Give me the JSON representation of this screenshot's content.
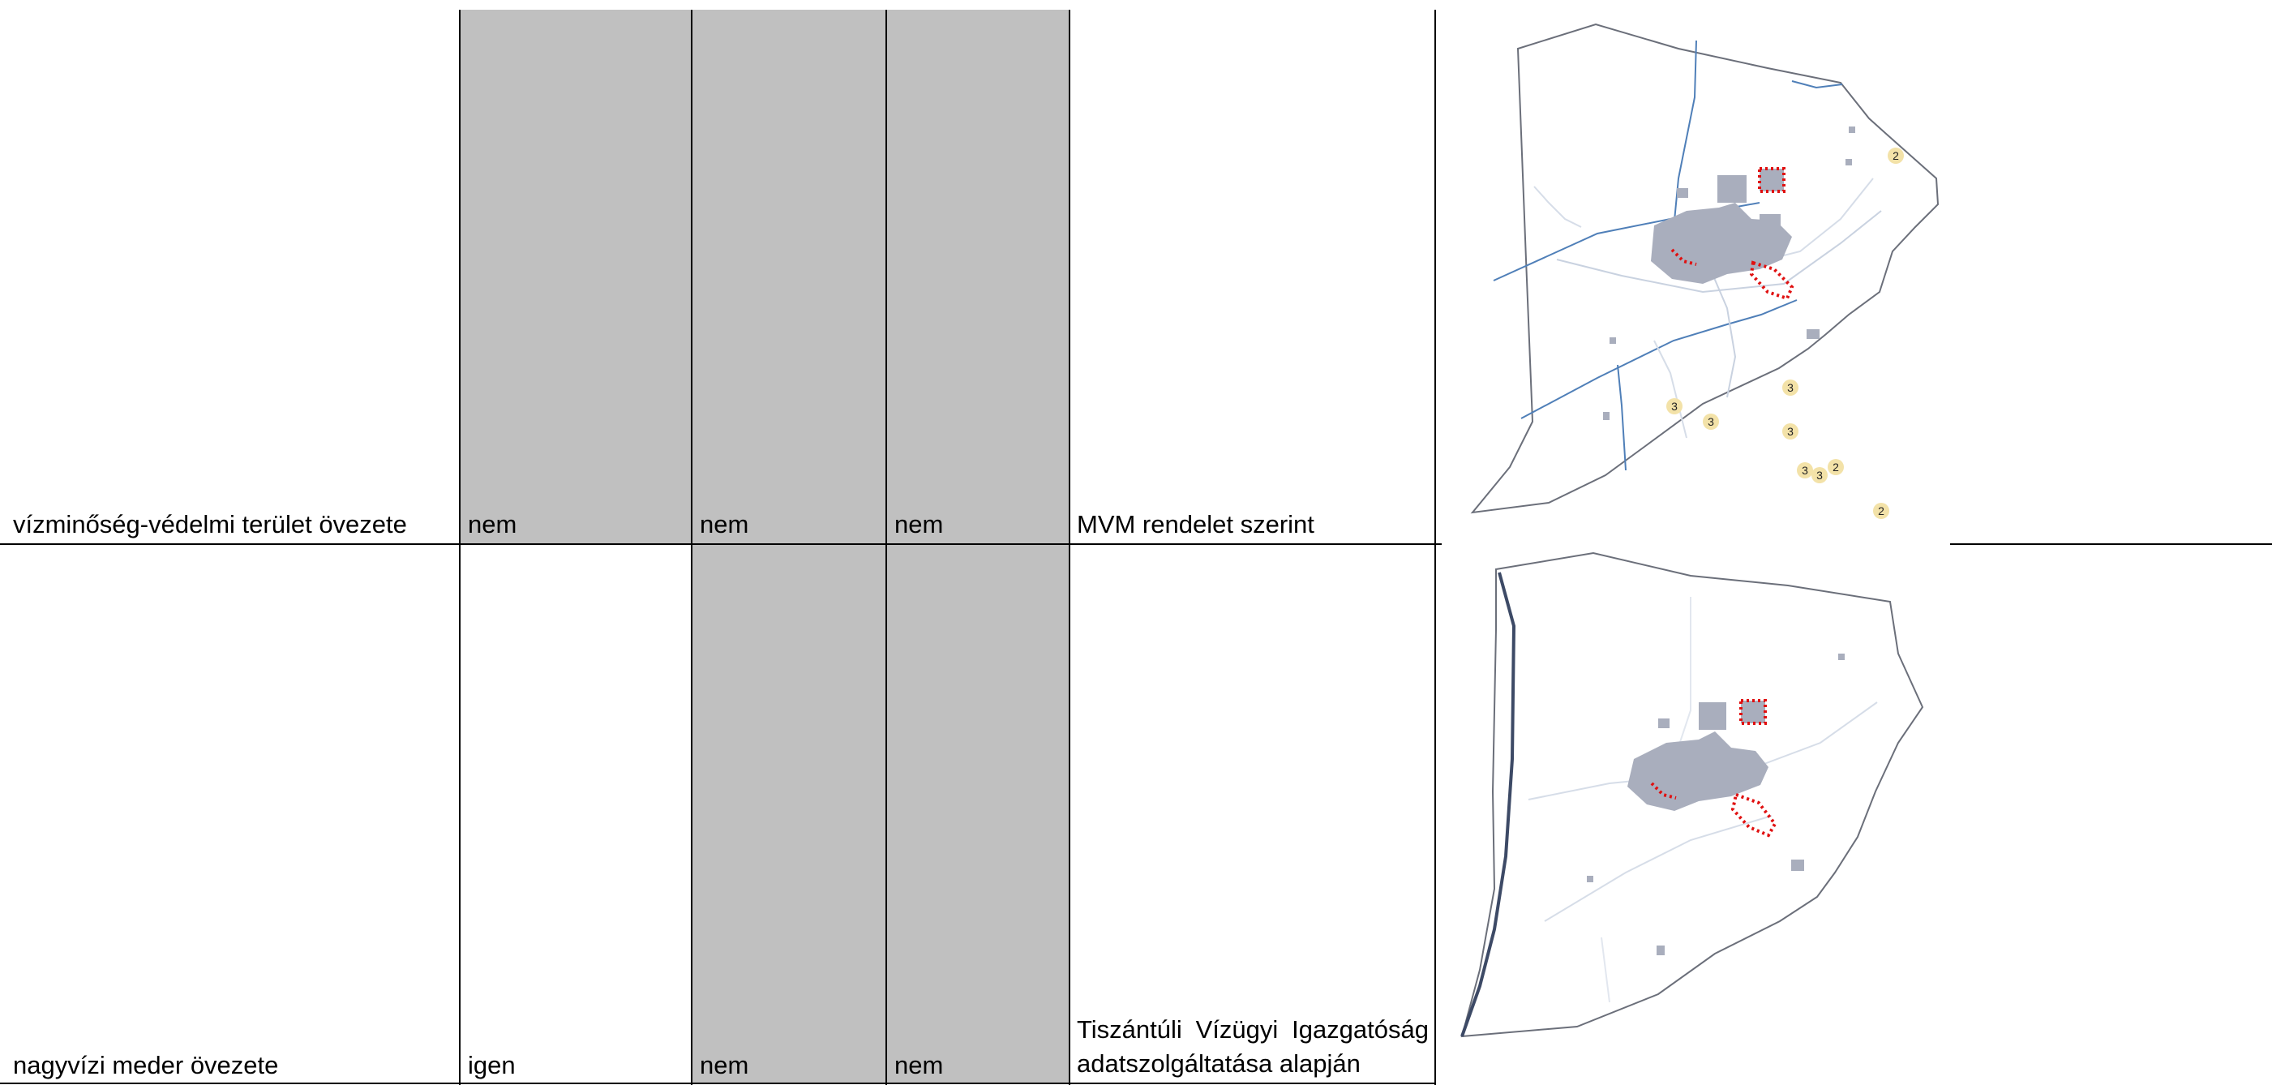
{
  "rows": [
    {
      "zone": "vízminőség-védelmi terület övezete",
      "col2": "nem",
      "col3": "nem",
      "col4": "nem",
      "source": "MVM rendelet szerint",
      "map_markers": [
        "2",
        "3",
        "3",
        "3",
        "3",
        "3",
        "3",
        "2",
        "2"
      ]
    },
    {
      "zone": "nagyvízi meder övezete",
      "col2": "igen",
      "col3": "nem",
      "col4": "nem",
      "source": "Tiszántúli Vízügyi Igazgatóság adatszolgáltatása alapján"
    }
  ],
  "colors": {
    "shaded_cell": "#c0c0c0",
    "built_area": "#a9aebd",
    "water_line": "#4f7fb8",
    "boundary_dotted": "#e01010",
    "marker_fill": "#f3e2a8"
  }
}
